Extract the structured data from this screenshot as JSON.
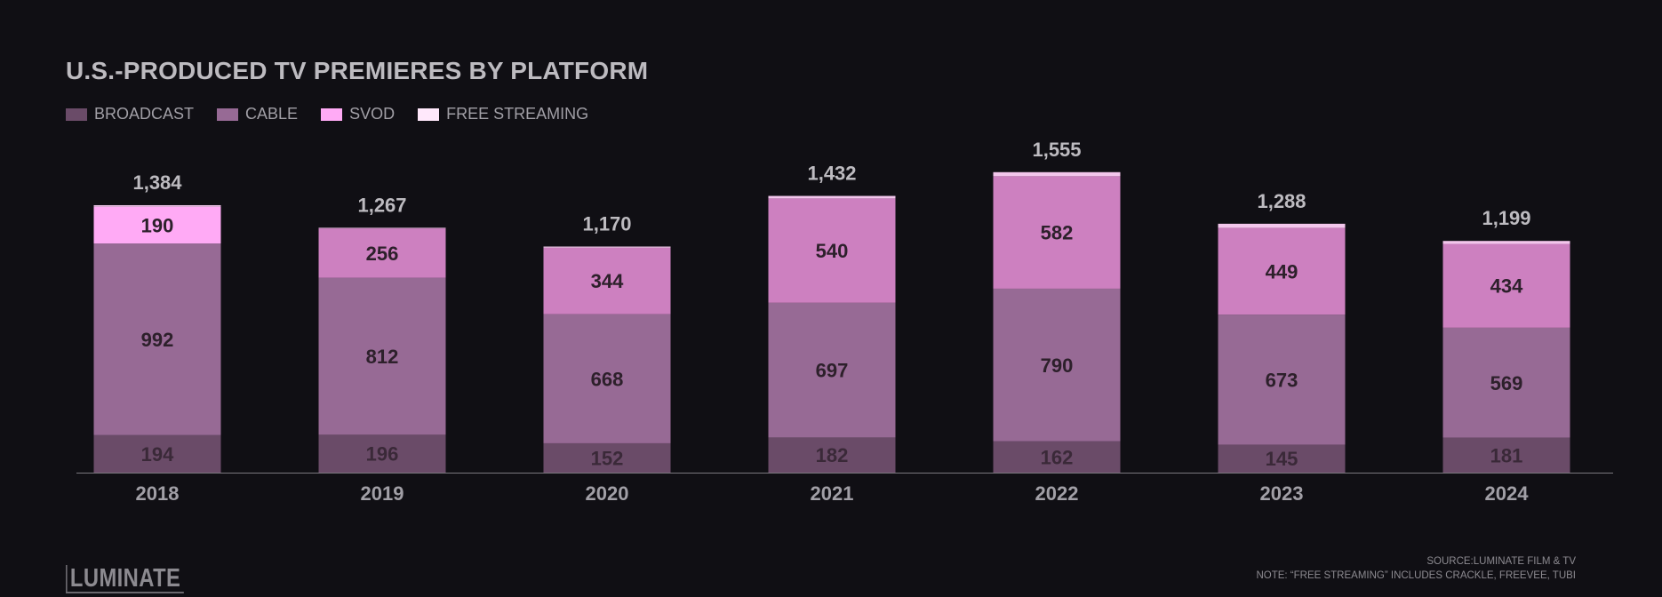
{
  "title": "U.S.-PRODUCED TV PREMIERES BY PLATFORM",
  "legend": [
    {
      "label": "BROADCAST",
      "color": "#6a4b68"
    },
    {
      "label": "CABLE",
      "color": "#976a95"
    },
    {
      "label": "SVOD",
      "color": "#ffaaf5"
    },
    {
      "label": "FREE STREAMING",
      "color": "#ffe8fb"
    }
  ],
  "chart_data": {
    "type": "bar",
    "stacked": true,
    "categories": [
      "2018",
      "2019",
      "2020",
      "2021",
      "2022",
      "2023",
      "2024"
    ],
    "series": [
      {
        "name": "BROADCAST",
        "color": "#6a4b68",
        "values": [
          194,
          196,
          152,
          182,
          162,
          145,
          181
        ]
      },
      {
        "name": "CABLE",
        "color": "#976a95",
        "values": [
          992,
          812,
          668,
          697,
          790,
          673,
          569
        ]
      },
      {
        "name": "SVOD",
        "color": "#cd80c0",
        "values": [
          190,
          256,
          344,
          540,
          582,
          449,
          434
        ]
      },
      {
        "name": "FREE STREAMING",
        "color": "#f3c6ec",
        "values": [
          8,
          3,
          6,
          13,
          21,
          21,
          15
        ]
      }
    ],
    "svod_color_overrides": {
      "2018": "#ffaaf5"
    },
    "totals": [
      "1,384",
      "1,267",
      "1,170",
      "1,432",
      "1,555",
      "1,288",
      "1,199"
    ],
    "segment_labels": [
      [
        "194",
        "992",
        "190"
      ],
      [
        "196",
        "812",
        "256"
      ],
      [
        "152",
        "668",
        "344"
      ],
      [
        "182",
        "697",
        "540"
      ],
      [
        "162",
        "790",
        "582"
      ],
      [
        "145",
        "673",
        "449"
      ],
      [
        "181",
        "569",
        "434"
      ]
    ],
    "grid": false,
    "legend_position": "top-left"
  },
  "logo": "LUMINATE",
  "source_line": "SOURCE:LUMINATE FILM & TV",
  "note_line": "NOTE: “FREE STREAMING” INCLUDES CRACKLE, FREEVEE, TUBI"
}
